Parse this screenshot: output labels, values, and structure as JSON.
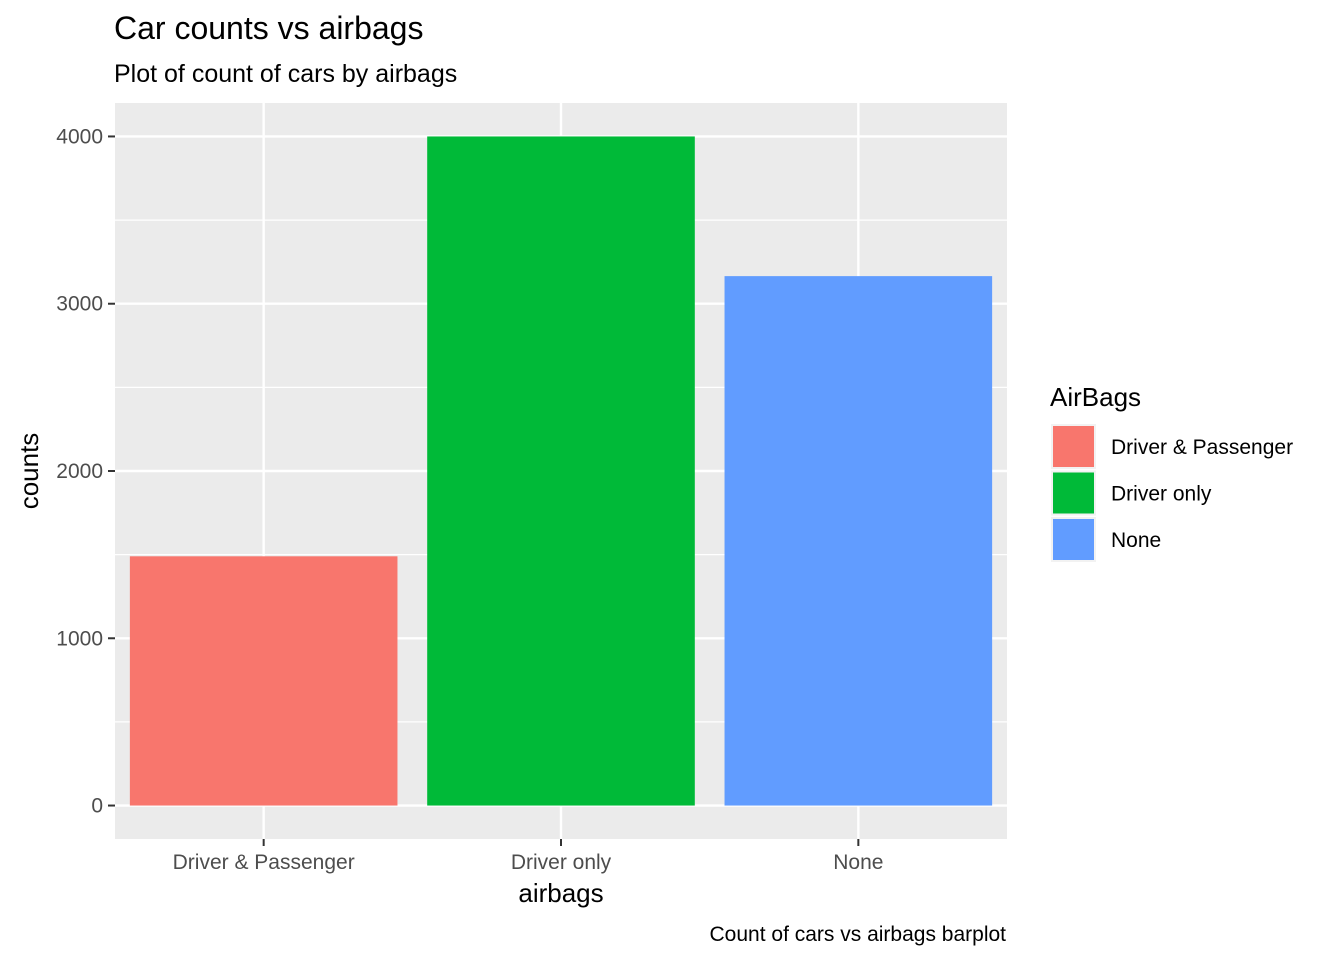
{
  "chart_data": {
    "type": "bar",
    "title": "Car counts vs airbags",
    "subtitle": "Plot of count of cars by airbags",
    "caption": "Count of cars vs airbags barplot",
    "xlabel": "airbags",
    "ylabel": "counts",
    "categories": [
      "Driver & Passenger",
      "Driver only",
      "None"
    ],
    "values": [
      1490,
      4000,
      3165
    ],
    "ylim": [
      -200,
      4200
    ],
    "yticks": [
      0,
      1000,
      2000,
      3000,
      4000
    ],
    "ytick_labels": [
      "0",
      "1000",
      "2000",
      "3000",
      "4000"
    ],
    "grid": true,
    "colors": [
      "#F8766D",
      "#00BA38",
      "#619CFF"
    ],
    "panel_background": "#EBEBEB",
    "legend": {
      "title": "AirBags",
      "position": "right",
      "entries": [
        "Driver & Passenger",
        "Driver only",
        "None"
      ]
    }
  }
}
